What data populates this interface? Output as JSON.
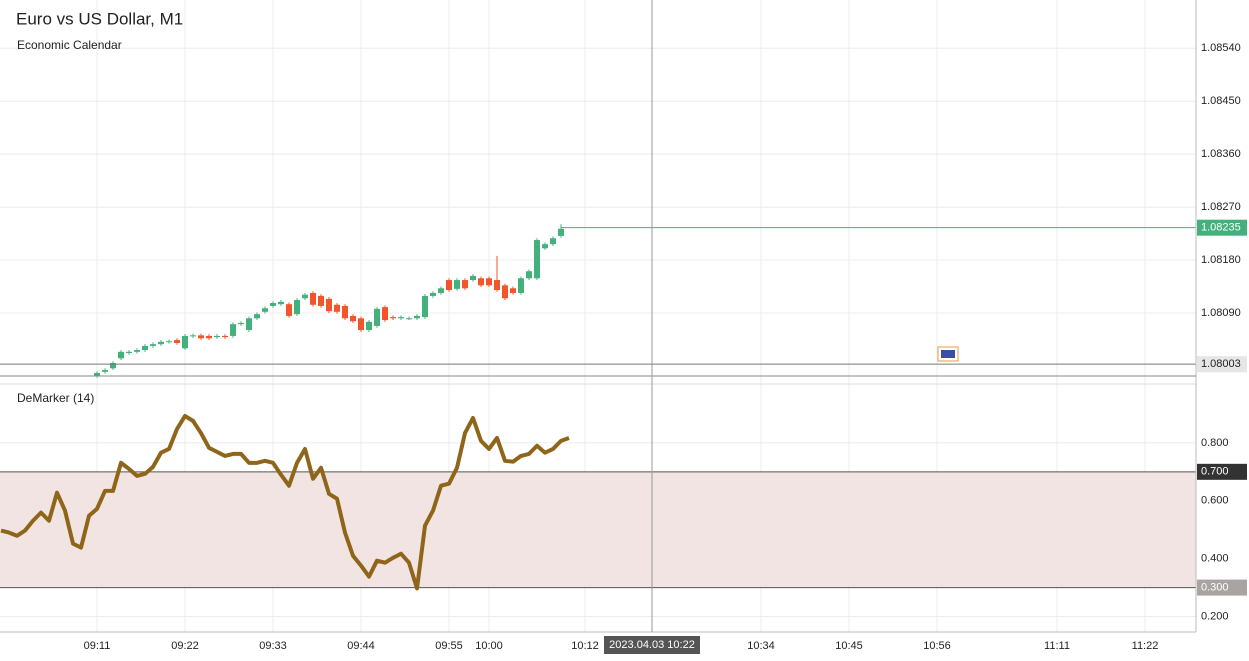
{
  "chart_data": [
    {
      "type": "candlestick",
      "title": "Euro vs US Dollar, M1",
      "subtitle": "Economic Calendar",
      "x": [
        "09:11",
        "09:12",
        "09:13",
        "09:14",
        "09:15",
        "09:16",
        "09:17",
        "09:18",
        "09:19",
        "09:20",
        "09:21",
        "09:22",
        "09:23",
        "09:24",
        "09:25",
        "09:26",
        "09:27",
        "09:28",
        "09:29",
        "09:30",
        "09:31",
        "09:32",
        "09:33",
        "09:34",
        "09:35",
        "09:36",
        "09:37",
        "09:38",
        "09:39",
        "09:40",
        "09:41",
        "09:42",
        "09:43",
        "09:44",
        "09:45",
        "09:46",
        "09:47",
        "09:48",
        "09:49",
        "09:50",
        "09:51",
        "09:52",
        "09:53",
        "09:54",
        "09:55",
        "09:56",
        "09:57",
        "09:58",
        "09:59",
        "10:00",
        "10:01",
        "10:02",
        "10:03",
        "10:04",
        "10:05",
        "10:06",
        "10:07",
        "10:08",
        "10:09"
      ],
      "open": [
        1.07983,
        1.0799,
        1.07996,
        1.08013,
        1.08022,
        1.08024,
        1.08027,
        1.08034,
        1.08037,
        1.08041,
        1.08044,
        1.0803,
        1.08051,
        1.08052,
        1.08051,
        1.08049,
        1.08051,
        1.08051,
        1.08071,
        1.08061,
        1.08081,
        1.08092,
        1.08102,
        1.08105,
        1.08105,
        1.08088,
        1.08115,
        1.08124,
        1.08119,
        1.08114,
        1.08104,
        1.08102,
        1.08085,
        1.08081,
        1.08061,
        1.08068,
        1.081,
        1.08083,
        1.08081,
        1.08081,
        1.08081,
        1.08083,
        1.08119,
        1.08124,
        1.08146,
        1.08131,
        1.08146,
        1.08146,
        1.08149,
        1.08149,
        1.08146,
        1.08137,
        1.08132,
        1.08124,
        1.08149,
        1.08149,
        1.082,
        1.08207,
        1.08221
      ],
      "high": [
        1.07991,
        1.07996,
        1.08008,
        1.08027,
        1.08027,
        1.0803,
        1.08037,
        1.0804,
        1.08044,
        1.08045,
        1.08047,
        1.08054,
        1.08055,
        1.08055,
        1.08054,
        1.08054,
        1.08054,
        1.08074,
        1.08076,
        1.08084,
        1.08091,
        1.08101,
        1.0811,
        1.08112,
        1.08108,
        1.08115,
        1.08124,
        1.08127,
        1.08122,
        1.08117,
        1.08107,
        1.08105,
        1.08088,
        1.08084,
        1.08078,
        1.081,
        1.08103,
        1.08086,
        1.08086,
        1.08084,
        1.08088,
        1.08122,
        1.08127,
        1.08135,
        1.08149,
        1.08149,
        1.08149,
        1.08156,
        1.08152,
        1.08152,
        1.08187,
        1.0814,
        1.08135,
        1.08152,
        1.08164,
        1.08217,
        1.0821,
        1.0822,
        1.08241
      ],
      "low": [
        1.0798,
        1.07987,
        1.07993,
        1.0801,
        1.08019,
        1.08021,
        1.08024,
        1.08031,
        1.08034,
        1.08038,
        1.08036,
        1.08027,
        1.08048,
        1.08044,
        1.08044,
        1.08046,
        1.08046,
        1.08048,
        1.08068,
        1.08058,
        1.08078,
        1.08089,
        1.08099,
        1.08102,
        1.08082,
        1.08085,
        1.08112,
        1.08101,
        1.08099,
        1.0809,
        1.08089,
        1.08078,
        1.08073,
        1.08058,
        1.08058,
        1.08065,
        1.08075,
        1.08078,
        1.08078,
        1.08078,
        1.08078,
        1.0808,
        1.08116,
        1.08121,
        1.08126,
        1.08128,
        1.08129,
        1.08143,
        1.08134,
        1.08134,
        1.08126,
        1.08112,
        1.08121,
        1.08121,
        1.08146,
        1.08146,
        1.08197,
        1.08204,
        1.08218
      ],
      "close": [
        1.07988,
        1.07993,
        1.08005,
        1.08024,
        1.08024,
        1.08027,
        1.08034,
        1.08037,
        1.08041,
        1.08042,
        1.08039,
        1.08051,
        1.08052,
        1.08047,
        1.08047,
        1.08051,
        1.08049,
        1.08071,
        1.08073,
        1.08081,
        1.08088,
        1.08098,
        1.08107,
        1.08109,
        1.08085,
        1.08112,
        1.08121,
        1.08104,
        1.08102,
        1.08093,
        1.08092,
        1.08081,
        1.08076,
        1.08061,
        1.08075,
        1.08097,
        1.08078,
        1.08081,
        1.08083,
        1.08081,
        1.08085,
        1.08119,
        1.08124,
        1.08132,
        1.08129,
        1.08146,
        1.08132,
        1.08153,
        1.08137,
        1.08137,
        1.08129,
        1.08115,
        1.08124,
        1.08149,
        1.08161,
        1.08214,
        1.08207,
        1.08217,
        1.08233
      ],
      "up_color": "#44b07c",
      "down_color": "#f2552c",
      "ylim": [
        1.07971,
        1.08622
      ],
      "yticks": [
        {
          "value": 1.0809,
          "label": "1.08090"
        },
        {
          "value": 1.0818,
          "label": "1.08180"
        },
        {
          "value": 1.0827,
          "label": "1.08270"
        },
        {
          "value": 1.0836,
          "label": "1.08360"
        },
        {
          "value": 1.0845,
          "label": "1.08450"
        },
        {
          "value": 1.0854,
          "label": "1.08540"
        }
      ],
      "last_price": {
        "value": 1.08235,
        "label": "1.08235"
      },
      "level": {
        "value": 1.08003,
        "label": "1.08003"
      },
      "grid": true
    },
    {
      "type": "line",
      "title": "DeMarker (14)",
      "color": "#8f6619",
      "x": [
        "08:59",
        "09:00",
        "09:01",
        "09:02",
        "09:03",
        "09:04",
        "09:05",
        "09:06",
        "09:07",
        "09:08",
        "09:09",
        "09:10",
        "09:11",
        "09:12",
        "09:13",
        "09:14",
        "09:15",
        "09:16",
        "09:17",
        "09:18",
        "09:19",
        "09:20",
        "09:21",
        "09:22",
        "09:23",
        "09:24",
        "09:25",
        "09:26",
        "09:27",
        "09:28",
        "09:29",
        "09:30",
        "09:31",
        "09:32",
        "09:33",
        "09:34",
        "09:35",
        "09:36",
        "09:37",
        "09:38",
        "09:39",
        "09:40",
        "09:41",
        "09:42",
        "09:43",
        "09:44",
        "09:45",
        "09:46",
        "09:47",
        "09:48",
        "09:49",
        "09:50",
        "09:51",
        "09:52",
        "09:53",
        "09:54",
        "09:55",
        "09:56",
        "09:57",
        "09:58",
        "09:59",
        "10:00",
        "10:01",
        "10:02",
        "10:03",
        "10:04",
        "10:05",
        "10:06",
        "10:07",
        "10:08",
        "10:09",
        "10:10"
      ],
      "values": [
        0.497,
        0.49,
        0.479,
        0.497,
        0.531,
        0.559,
        0.531,
        0.628,
        0.566,
        0.452,
        0.438,
        0.548,
        0.572,
        0.634,
        0.634,
        0.731,
        0.71,
        0.686,
        0.693,
        0.717,
        0.766,
        0.779,
        0.848,
        0.893,
        0.876,
        0.834,
        0.783,
        0.769,
        0.755,
        0.762,
        0.762,
        0.731,
        0.731,
        0.738,
        0.731,
        0.69,
        0.652,
        0.731,
        0.779,
        0.676,
        0.714,
        0.624,
        0.607,
        0.49,
        0.41,
        0.376,
        0.338,
        0.393,
        0.386,
        0.403,
        0.417,
        0.386,
        0.297,
        0.514,
        0.566,
        0.652,
        0.659,
        0.714,
        0.834,
        0.886,
        0.807,
        0.779,
        0.817,
        0.738,
        0.735,
        0.755,
        0.762,
        0.79,
        0.766,
        0.779,
        0.807,
        0.817
      ],
      "ylim": [
        0.15,
        1.0
      ],
      "yticks": [
        {
          "value": 0.2,
          "label": "0.200"
        },
        {
          "value": 0.4,
          "label": "0.400"
        },
        {
          "value": 0.6,
          "label": "0.600"
        },
        {
          "value": 0.8,
          "label": "0.800"
        }
      ],
      "levels": [
        {
          "value": 0.7,
          "label": "0.700"
        },
        {
          "value": 0.3,
          "label": "0.300"
        }
      ],
      "band_color": "#f1e4e2",
      "grid": true
    }
  ],
  "x_axis_labels": [
    "09:11",
    "09:22",
    "09:33",
    "09:44",
    "09:55",
    "10:00",
    "10:12",
    "10:34",
    "10:45",
    "10:56",
    "11:11",
    "11:22"
  ],
  "crosshair_label": "2023.04.03 10:22"
}
